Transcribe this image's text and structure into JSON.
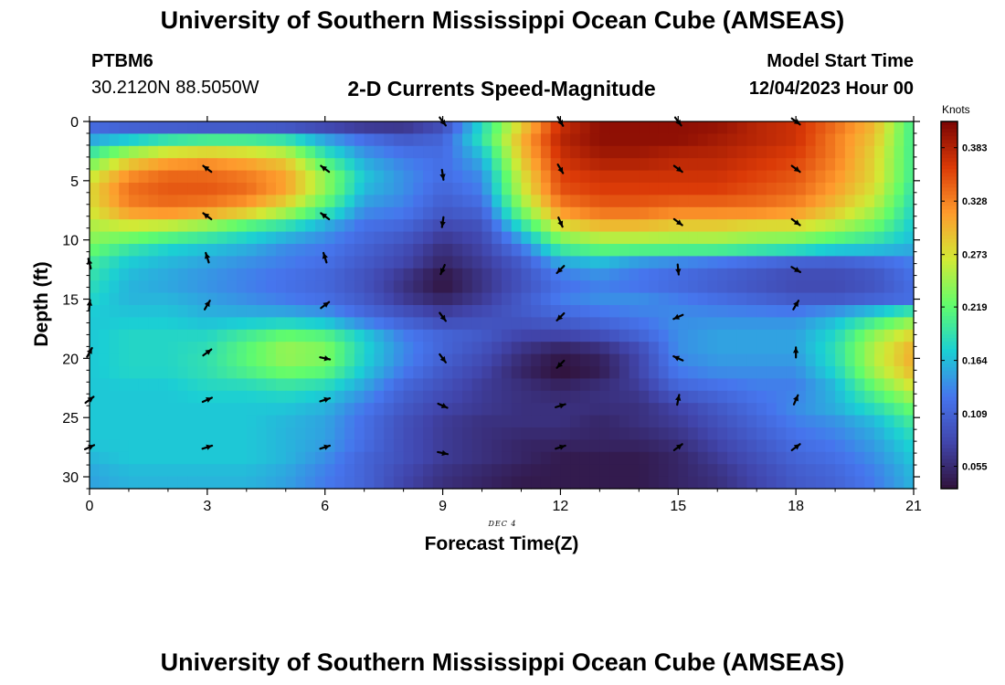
{
  "page": {
    "title_top": "University of Southern Mississippi Ocean Cube (AMSEAS)",
    "title_bottom": "University of Southern Mississippi Ocean Cube (AMSEAS)",
    "station_id": "PTBM6",
    "station_coords": "30.2120N  88.5050W",
    "plot_title": "2-D Currents Speed-Magnitude",
    "model_start_label": "Model Start Time",
    "model_start_value": "12/04/2023 Hour 00",
    "date_label": "DEC 4"
  },
  "colors": {
    "ramp": [
      "#30123b",
      "#4145ab",
      "#4675ed",
      "#1bcfd4",
      "#61fc6c",
      "#d2e935",
      "#fe9b2d",
      "#db3a07",
      "#7a0403"
    ],
    "arrow": "#000000",
    "frame": "#000000"
  },
  "chart_data": {
    "type": "heatmap",
    "title": "2-D Currents Speed-Magnitude",
    "xlabel": "Forecast Time(Z)",
    "ylabel": "Depth (ft)",
    "xlim": [
      0,
      21
    ],
    "ylim": [
      0,
      31
    ],
    "y_inverted": true,
    "x_ticks": [
      "0",
      "3",
      "6",
      "9",
      "12",
      "15",
      "18",
      "21"
    ],
    "y_ticks": [
      "0",
      "5",
      "10",
      "15",
      "20",
      "25",
      "30"
    ],
    "colorbar": {
      "title": "Knots",
      "min": 0.032,
      "max": 0.41,
      "ticks": [
        "0.383",
        "0.328",
        "0.273",
        "0.219",
        "0.164",
        "0.109",
        "0.055"
      ]
    },
    "grid": {
      "hours": [
        0,
        1,
        2,
        3,
        4,
        5,
        6,
        7,
        8,
        9,
        10,
        11,
        12,
        13,
        14,
        15,
        16,
        17,
        18,
        19,
        20,
        21
      ],
      "depths_ft": [
        0,
        1.5,
        3,
        4.5,
        6,
        7.5,
        9,
        10.5,
        12,
        13.5,
        15,
        16.5,
        18,
        19.5,
        21,
        22.5,
        24,
        25.5,
        27,
        28.5,
        30
      ],
      "speed_knots": [
        [
          0.1,
          0.075,
          0.06,
          0.05,
          0.05,
          0.05,
          0.05,
          0.045,
          0.05,
          0.08,
          0.18,
          0.28,
          0.37,
          0.4,
          0.4,
          0.4,
          0.4,
          0.38,
          0.37,
          0.34,
          0.3,
          0.2
        ],
        [
          0.15,
          0.17,
          0.19,
          0.2,
          0.2,
          0.19,
          0.15,
          0.12,
          0.1,
          0.11,
          0.19,
          0.3,
          0.38,
          0.4,
          0.4,
          0.4,
          0.39,
          0.38,
          0.37,
          0.33,
          0.29,
          0.2
        ],
        [
          0.21,
          0.27,
          0.3,
          0.31,
          0.3,
          0.28,
          0.2,
          0.15,
          0.13,
          0.12,
          0.16,
          0.29,
          0.37,
          0.39,
          0.39,
          0.38,
          0.38,
          0.37,
          0.36,
          0.33,
          0.28,
          0.2
        ],
        [
          0.26,
          0.32,
          0.34,
          0.34,
          0.33,
          0.31,
          0.24,
          0.17,
          0.14,
          0.12,
          0.14,
          0.27,
          0.36,
          0.37,
          0.37,
          0.37,
          0.37,
          0.36,
          0.35,
          0.32,
          0.28,
          0.2
        ],
        [
          0.28,
          0.34,
          0.35,
          0.35,
          0.34,
          0.31,
          0.24,
          0.16,
          0.14,
          0.11,
          0.13,
          0.26,
          0.35,
          0.36,
          0.36,
          0.36,
          0.36,
          0.35,
          0.34,
          0.31,
          0.27,
          0.19
        ],
        [
          0.27,
          0.32,
          0.33,
          0.32,
          0.3,
          0.26,
          0.2,
          0.14,
          0.13,
          0.1,
          0.11,
          0.23,
          0.32,
          0.34,
          0.34,
          0.33,
          0.33,
          0.33,
          0.32,
          0.29,
          0.25,
          0.18
        ],
        [
          0.25,
          0.26,
          0.25,
          0.23,
          0.2,
          0.18,
          0.15,
          0.12,
          0.11,
          0.08,
          0.09,
          0.18,
          0.27,
          0.29,
          0.29,
          0.28,
          0.28,
          0.27,
          0.27,
          0.25,
          0.22,
          0.17
        ],
        [
          0.23,
          0.2,
          0.18,
          0.17,
          0.16,
          0.14,
          0.13,
          0.11,
          0.09,
          0.06,
          0.08,
          0.13,
          0.21,
          0.23,
          0.23,
          0.23,
          0.23,
          0.22,
          0.21,
          0.19,
          0.18,
          0.16
        ],
        [
          0.2,
          0.17,
          0.16,
          0.15,
          0.14,
          0.13,
          0.12,
          0.1,
          0.08,
          0.05,
          0.07,
          0.1,
          0.15,
          0.16,
          0.14,
          0.13,
          0.12,
          0.11,
          0.1,
          0.1,
          0.11,
          0.13
        ],
        [
          0.19,
          0.16,
          0.15,
          0.14,
          0.13,
          0.12,
          0.11,
          0.09,
          0.06,
          0.03,
          0.06,
          0.09,
          0.12,
          0.13,
          0.12,
          0.11,
          0.1,
          0.09,
          0.08,
          0.08,
          0.09,
          0.12
        ],
        [
          0.18,
          0.16,
          0.16,
          0.15,
          0.14,
          0.13,
          0.12,
          0.1,
          0.07,
          0.05,
          0.07,
          0.1,
          0.13,
          0.14,
          0.14,
          0.13,
          0.12,
          0.11,
          0.1,
          0.1,
          0.11,
          0.12
        ],
        [
          0.17,
          0.17,
          0.17,
          0.16,
          0.16,
          0.16,
          0.15,
          0.12,
          0.1,
          0.08,
          0.09,
          0.1,
          0.11,
          0.12,
          0.13,
          0.14,
          0.14,
          0.14,
          0.14,
          0.16,
          0.19,
          0.23
        ],
        [
          0.17,
          0.18,
          0.18,
          0.18,
          0.2,
          0.22,
          0.21,
          0.17,
          0.13,
          0.11,
          0.1,
          0.08,
          0.08,
          0.09,
          0.11,
          0.14,
          0.15,
          0.15,
          0.15,
          0.18,
          0.24,
          0.28
        ],
        [
          0.17,
          0.18,
          0.18,
          0.19,
          0.22,
          0.25,
          0.24,
          0.18,
          0.14,
          0.11,
          0.09,
          0.06,
          0.04,
          0.05,
          0.08,
          0.14,
          0.15,
          0.15,
          0.15,
          0.19,
          0.26,
          0.31
        ],
        [
          0.17,
          0.18,
          0.18,
          0.19,
          0.21,
          0.23,
          0.22,
          0.17,
          0.13,
          0.1,
          0.08,
          0.05,
          0.03,
          0.04,
          0.08,
          0.13,
          0.14,
          0.14,
          0.14,
          0.18,
          0.25,
          0.3
        ],
        [
          0.17,
          0.17,
          0.17,
          0.18,
          0.18,
          0.19,
          0.18,
          0.15,
          0.11,
          0.09,
          0.07,
          0.06,
          0.05,
          0.06,
          0.07,
          0.11,
          0.12,
          0.13,
          0.13,
          0.16,
          0.22,
          0.27
        ],
        [
          0.17,
          0.17,
          0.17,
          0.17,
          0.17,
          0.17,
          0.16,
          0.13,
          0.1,
          0.08,
          0.07,
          0.06,
          0.06,
          0.06,
          0.06,
          0.08,
          0.1,
          0.12,
          0.14,
          0.16,
          0.19,
          0.23
        ],
        [
          0.17,
          0.17,
          0.17,
          0.17,
          0.17,
          0.16,
          0.15,
          0.12,
          0.09,
          0.07,
          0.06,
          0.06,
          0.06,
          0.05,
          0.06,
          0.07,
          0.09,
          0.11,
          0.13,
          0.14,
          0.16,
          0.2
        ],
        [
          0.17,
          0.17,
          0.17,
          0.17,
          0.17,
          0.16,
          0.15,
          0.12,
          0.09,
          0.07,
          0.06,
          0.05,
          0.05,
          0.05,
          0.05,
          0.06,
          0.08,
          0.1,
          0.12,
          0.13,
          0.15,
          0.18
        ],
        [
          0.16,
          0.17,
          0.17,
          0.17,
          0.17,
          0.16,
          0.14,
          0.11,
          0.09,
          0.07,
          0.06,
          0.05,
          0.04,
          0.04,
          0.04,
          0.05,
          0.07,
          0.09,
          0.11,
          0.12,
          0.14,
          0.17
        ],
        [
          0.15,
          0.16,
          0.16,
          0.16,
          0.16,
          0.15,
          0.13,
          0.11,
          0.08,
          0.06,
          0.05,
          0.04,
          0.04,
          0.04,
          0.04,
          0.05,
          0.06,
          0.08,
          0.1,
          0.11,
          0.13,
          0.16
        ]
      ]
    },
    "vectors": [
      {
        "x": 0,
        "y": 12,
        "u": -0.2,
        "v": 0.8
      },
      {
        "x": 0,
        "y": 15.5,
        "u": 0.1,
        "v": 1
      },
      {
        "x": 0,
        "y": 19.5,
        "u": 0.5,
        "v": 0.9
      },
      {
        "x": 0,
        "y": 23.5,
        "u": 0.8,
        "v": 0.6
      },
      {
        "x": 0,
        "y": 27.5,
        "u": 0.9,
        "v": 0.4
      },
      {
        "x": 3,
        "y": 4,
        "u": -0.8,
        "v": 0.6
      },
      {
        "x": 3,
        "y": 8,
        "u": -0.8,
        "v": 0.6
      },
      {
        "x": 3,
        "y": 11.5,
        "u": -0.3,
        "v": 0.95
      },
      {
        "x": 3,
        "y": 15.5,
        "u": 0.5,
        "v": 0.85
      },
      {
        "x": 3,
        "y": 19.5,
        "u": 0.8,
        "v": 0.6
      },
      {
        "x": 3,
        "y": 23.5,
        "u": 0.9,
        "v": 0.4
      },
      {
        "x": 3,
        "y": 27.5,
        "u": 0.95,
        "v": 0.3
      },
      {
        "x": 6,
        "y": 4,
        "u": -0.8,
        "v": 0.6
      },
      {
        "x": 6,
        "y": 8,
        "u": -0.8,
        "v": 0.6
      },
      {
        "x": 6,
        "y": 11.5,
        "u": -0.3,
        "v": 0.95
      },
      {
        "x": 6,
        "y": 15.5,
        "u": 0.8,
        "v": 0.6
      },
      {
        "x": 6,
        "y": 20,
        "u": 0.95,
        "v": -0.2
      },
      {
        "x": 6,
        "y": 23.5,
        "u": 0.95,
        "v": 0.3
      },
      {
        "x": 6,
        "y": 27.5,
        "u": 0.95,
        "v": 0.3
      },
      {
        "x": 9,
        "y": 0,
        "u": 0.6,
        "v": -0.8
      },
      {
        "x": 9,
        "y": 4.5,
        "u": 0.15,
        "v": -1
      },
      {
        "x": 9,
        "y": 8.5,
        "u": -0.15,
        "v": -1
      },
      {
        "x": 9,
        "y": 12.5,
        "u": -0.4,
        "v": -0.9
      },
      {
        "x": 9,
        "y": 16.5,
        "u": 0.6,
        "v": -0.8
      },
      {
        "x": 9,
        "y": 20,
        "u": 0.6,
        "v": -0.8
      },
      {
        "x": 9,
        "y": 24,
        "u": 0.9,
        "v": -0.4
      },
      {
        "x": 9,
        "y": 28,
        "u": 0.95,
        "v": -0.2
      },
      {
        "x": 12,
        "y": 0,
        "u": 0.5,
        "v": -0.85
      },
      {
        "x": 12,
        "y": 4,
        "u": 0.5,
        "v": -0.85
      },
      {
        "x": 12,
        "y": 8.5,
        "u": 0.4,
        "v": -0.9
      },
      {
        "x": 12,
        "y": 12.5,
        "u": -0.7,
        "v": -0.7
      },
      {
        "x": 12,
        "y": 16.5,
        "u": -0.7,
        "v": -0.7
      },
      {
        "x": 12,
        "y": 20.5,
        "u": -0.7,
        "v": -0.7
      },
      {
        "x": 12,
        "y": 24,
        "u": 0.95,
        "v": 0.3
      },
      {
        "x": 12,
        "y": 27.5,
        "u": 0.95,
        "v": 0.3
      },
      {
        "x": 15,
        "y": 0,
        "u": 0.6,
        "v": -0.8
      },
      {
        "x": 15,
        "y": 4,
        "u": 0.8,
        "v": -0.6
      },
      {
        "x": 15,
        "y": 8.5,
        "u": 0.8,
        "v": -0.6
      },
      {
        "x": 15,
        "y": 12.5,
        "u": 0.1,
        "v": -1
      },
      {
        "x": 15,
        "y": 16.5,
        "u": -0.9,
        "v": -0.4
      },
      {
        "x": 15,
        "y": 20,
        "u": -0.9,
        "v": 0.4
      },
      {
        "x": 15,
        "y": 23.5,
        "u": 0.2,
        "v": 1
      },
      {
        "x": 15,
        "y": 27.5,
        "u": 0.8,
        "v": 0.6
      },
      {
        "x": 18,
        "y": 0,
        "u": 0.8,
        "v": -0.6
      },
      {
        "x": 18,
        "y": 4,
        "u": 0.8,
        "v": -0.6
      },
      {
        "x": 18,
        "y": 8.5,
        "u": 0.8,
        "v": -0.6
      },
      {
        "x": 18,
        "y": 12.5,
        "u": 0.85,
        "v": -0.5
      },
      {
        "x": 18,
        "y": 15.5,
        "u": 0.5,
        "v": 0.85
      },
      {
        "x": 18,
        "y": 19.5,
        "u": 0,
        "v": 1
      },
      {
        "x": 18,
        "y": 23.5,
        "u": 0.4,
        "v": 0.9
      },
      {
        "x": 18,
        "y": 27.5,
        "u": 0.8,
        "v": 0.6
      }
    ]
  }
}
